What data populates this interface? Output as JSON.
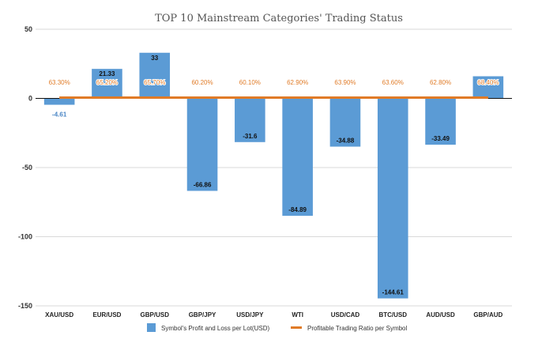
{
  "chart_data": {
    "type": "bar+line",
    "title": "TOP 10 Mainstream Categories' Trading Status",
    "categories": [
      "XAU/USD",
      "EUR/USD",
      "GBP/USD",
      "GBP/JPY",
      "USD/JPY",
      "WTI",
      "USD/CAD",
      "BTC/USD",
      "AUD/USD",
      "GBP/AUD"
    ],
    "ylim": [
      -150,
      50
    ],
    "yticks": [
      50,
      0,
      -50,
      -100,
      -150
    ],
    "grid": true,
    "legend_position": "bottom",
    "series": [
      {
        "name": "Symbol's Profit and Loss per Lot(USD)",
        "type": "bar",
        "color": "#5b9bd5",
        "values": [
          -4.61,
          21.33,
          33,
          -66.86,
          -31.6,
          -84.89,
          -34.88,
          -144.61,
          -33.49,
          16
        ],
        "labels": [
          "-4.61",
          "21.33",
          "33",
          "-66.86",
          "-31.6",
          "-84.89",
          "-34.88",
          "-144.61",
          "-33.49",
          ""
        ]
      },
      {
        "name": "Profitable Trading Ratio per Symbol",
        "type": "line",
        "color": "#e07b27",
        "values": [
          63.3,
          65.2,
          65.7,
          60.2,
          60.1,
          62.9,
          63.9,
          63.6,
          62.8,
          68.4
        ],
        "labels": [
          "63.30%",
          "65.20%",
          "65.70%",
          "60.20%",
          "60.10%",
          "62.90%",
          "63.90%",
          "63.60%",
          "62.80%",
          "68.40%"
        ]
      }
    ]
  }
}
